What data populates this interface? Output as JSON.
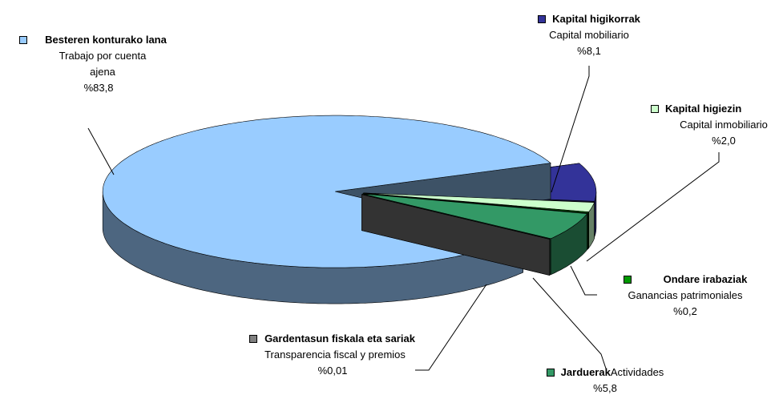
{
  "chart_data": {
    "type": "pie3d",
    "categories": [
      "Besteren konturako lana",
      "Kapital higikorrak",
      "Kapital higiezin",
      "Ondare irabaziak",
      "Jarduerak",
      "Gardentasun fiskala eta sariak"
    ],
    "translations": [
      "Trabajo por  cuenta ajena",
      "Capital mobiliario",
      "Capital inmobiliario",
      "Ganancias patrimoniales",
      "Actividades",
      "Transparencia fiscal y premios"
    ],
    "values": [
      83.8,
      8.1,
      2.0,
      0.2,
      5.8,
      0.01
    ],
    "value_labels": [
      "%83,8",
      "%8,1",
      "%2,0",
      "%0,2",
      "%5,8",
      "%0,01"
    ],
    "colors": [
      "#99ccff",
      "#333399",
      "#ccffcc",
      "#009900",
      "#339966",
      "#808080"
    ]
  }
}
